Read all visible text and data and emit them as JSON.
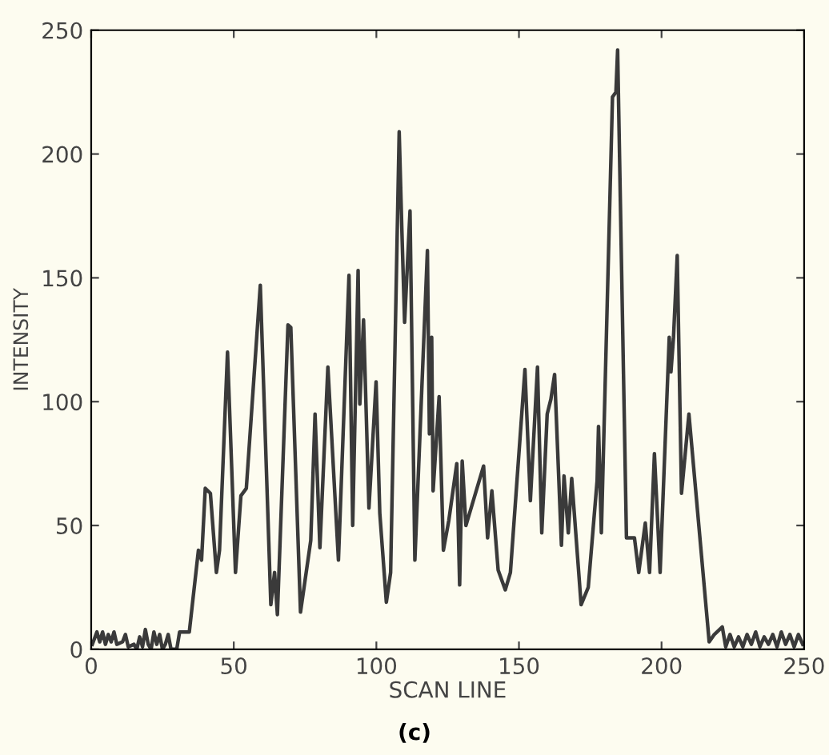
{
  "chart_data": {
    "type": "line",
    "xlabel": "SCAN LINE",
    "ylabel": "INTENSITY",
    "annotations": [
      "(c)"
    ],
    "xlim": [
      0,
      250
    ],
    "ylim": [
      0,
      250
    ],
    "xticks": [
      0,
      50,
      100,
      150,
      200,
      250
    ],
    "yticks": [
      0,
      50,
      100,
      150,
      200,
      250
    ],
    "grid": false,
    "legend": false,
    "series": [
      {
        "color": "#3a3a3a",
        "x": [
          0.4,
          2,
          3,
          4,
          5,
          6,
          7,
          8,
          9,
          11,
          12,
          13,
          15,
          16,
          17,
          18,
          19,
          20,
          21,
          22,
          23,
          24,
          25,
          26,
          27,
          28,
          30,
          31,
          33,
          34.4,
          37.6,
          38.7,
          40,
          41.8,
          43.9,
          45,
          47.8,
          50.6,
          52.5,
          54.4,
          59.3,
          63,
          64.3,
          65.3,
          69,
          70,
          73.4,
          77,
          78.5,
          80.2,
          83,
          86.7,
          90.4,
          91.7,
          93.6,
          94.2,
          95.5,
          97.4,
          99.9,
          101.2,
          103.5,
          105,
          108,
          108.9,
          109.9,
          111.8,
          113.5,
          117.9,
          118.6,
          119.4,
          119.9,
          122,
          123.5,
          125.4,
          128.2,
          129.2,
          130.1,
          131.4,
          137.6,
          139,
          140.5,
          142.7,
          145.2,
          147,
          152.1,
          154,
          156.5,
          158,
          159.9,
          161.2,
          162.5,
          164.9,
          165.8,
          167.3,
          168.5,
          171.8,
          174.3,
          177.4,
          177.9,
          178.9,
          182.8,
          184,
          184.6,
          187.7,
          190.5,
          192,
          194.3,
          195.8,
          197.5,
          199.5,
          202.7,
          203.3,
          204.2,
          205.5,
          207,
          209.6,
          216.7,
          218.5,
          221.3,
          222.5,
          224,
          225.5,
          227,
          228.5,
          230,
          231.5,
          233,
          234.5,
          236,
          237.5,
          239,
          240.5,
          242,
          243.5,
          245,
          246.5,
          248,
          249.5
        ],
        "values": [
          2,
          7,
          3,
          7,
          2,
          6,
          3,
          7,
          2,
          3,
          6,
          1,
          2,
          0,
          5,
          1,
          8,
          2,
          0,
          7,
          2,
          6,
          0,
          2,
          6,
          0,
          0,
          7,
          7,
          7,
          40,
          36,
          65,
          63,
          31,
          40,
          120,
          31,
          62,
          65,
          147,
          18,
          31,
          14,
          131,
          130,
          15,
          44,
          95,
          41,
          114,
          36,
          151,
          50,
          153,
          99,
          133,
          57,
          108,
          55,
          19,
          31,
          209,
          171,
          132,
          177,
          36,
          161,
          87,
          126,
          64,
          102,
          40,
          52,
          75,
          26,
          76,
          50,
          74,
          45,
          64,
          32,
          24,
          31,
          113,
          60,
          114,
          47,
          95,
          101,
          111,
          42,
          70,
          47,
          69,
          18,
          25,
          68,
          90,
          47,
          223,
          225,
          242,
          45,
          45,
          31,
          51,
          31,
          79,
          31,
          126,
          112,
          126,
          159,
          63,
          95,
          3,
          6,
          9,
          1,
          6,
          1,
          5,
          1,
          6,
          2,
          7,
          1,
          5,
          2,
          6,
          1,
          7,
          2,
          6,
          1,
          6,
          2
        ]
      }
    ]
  }
}
